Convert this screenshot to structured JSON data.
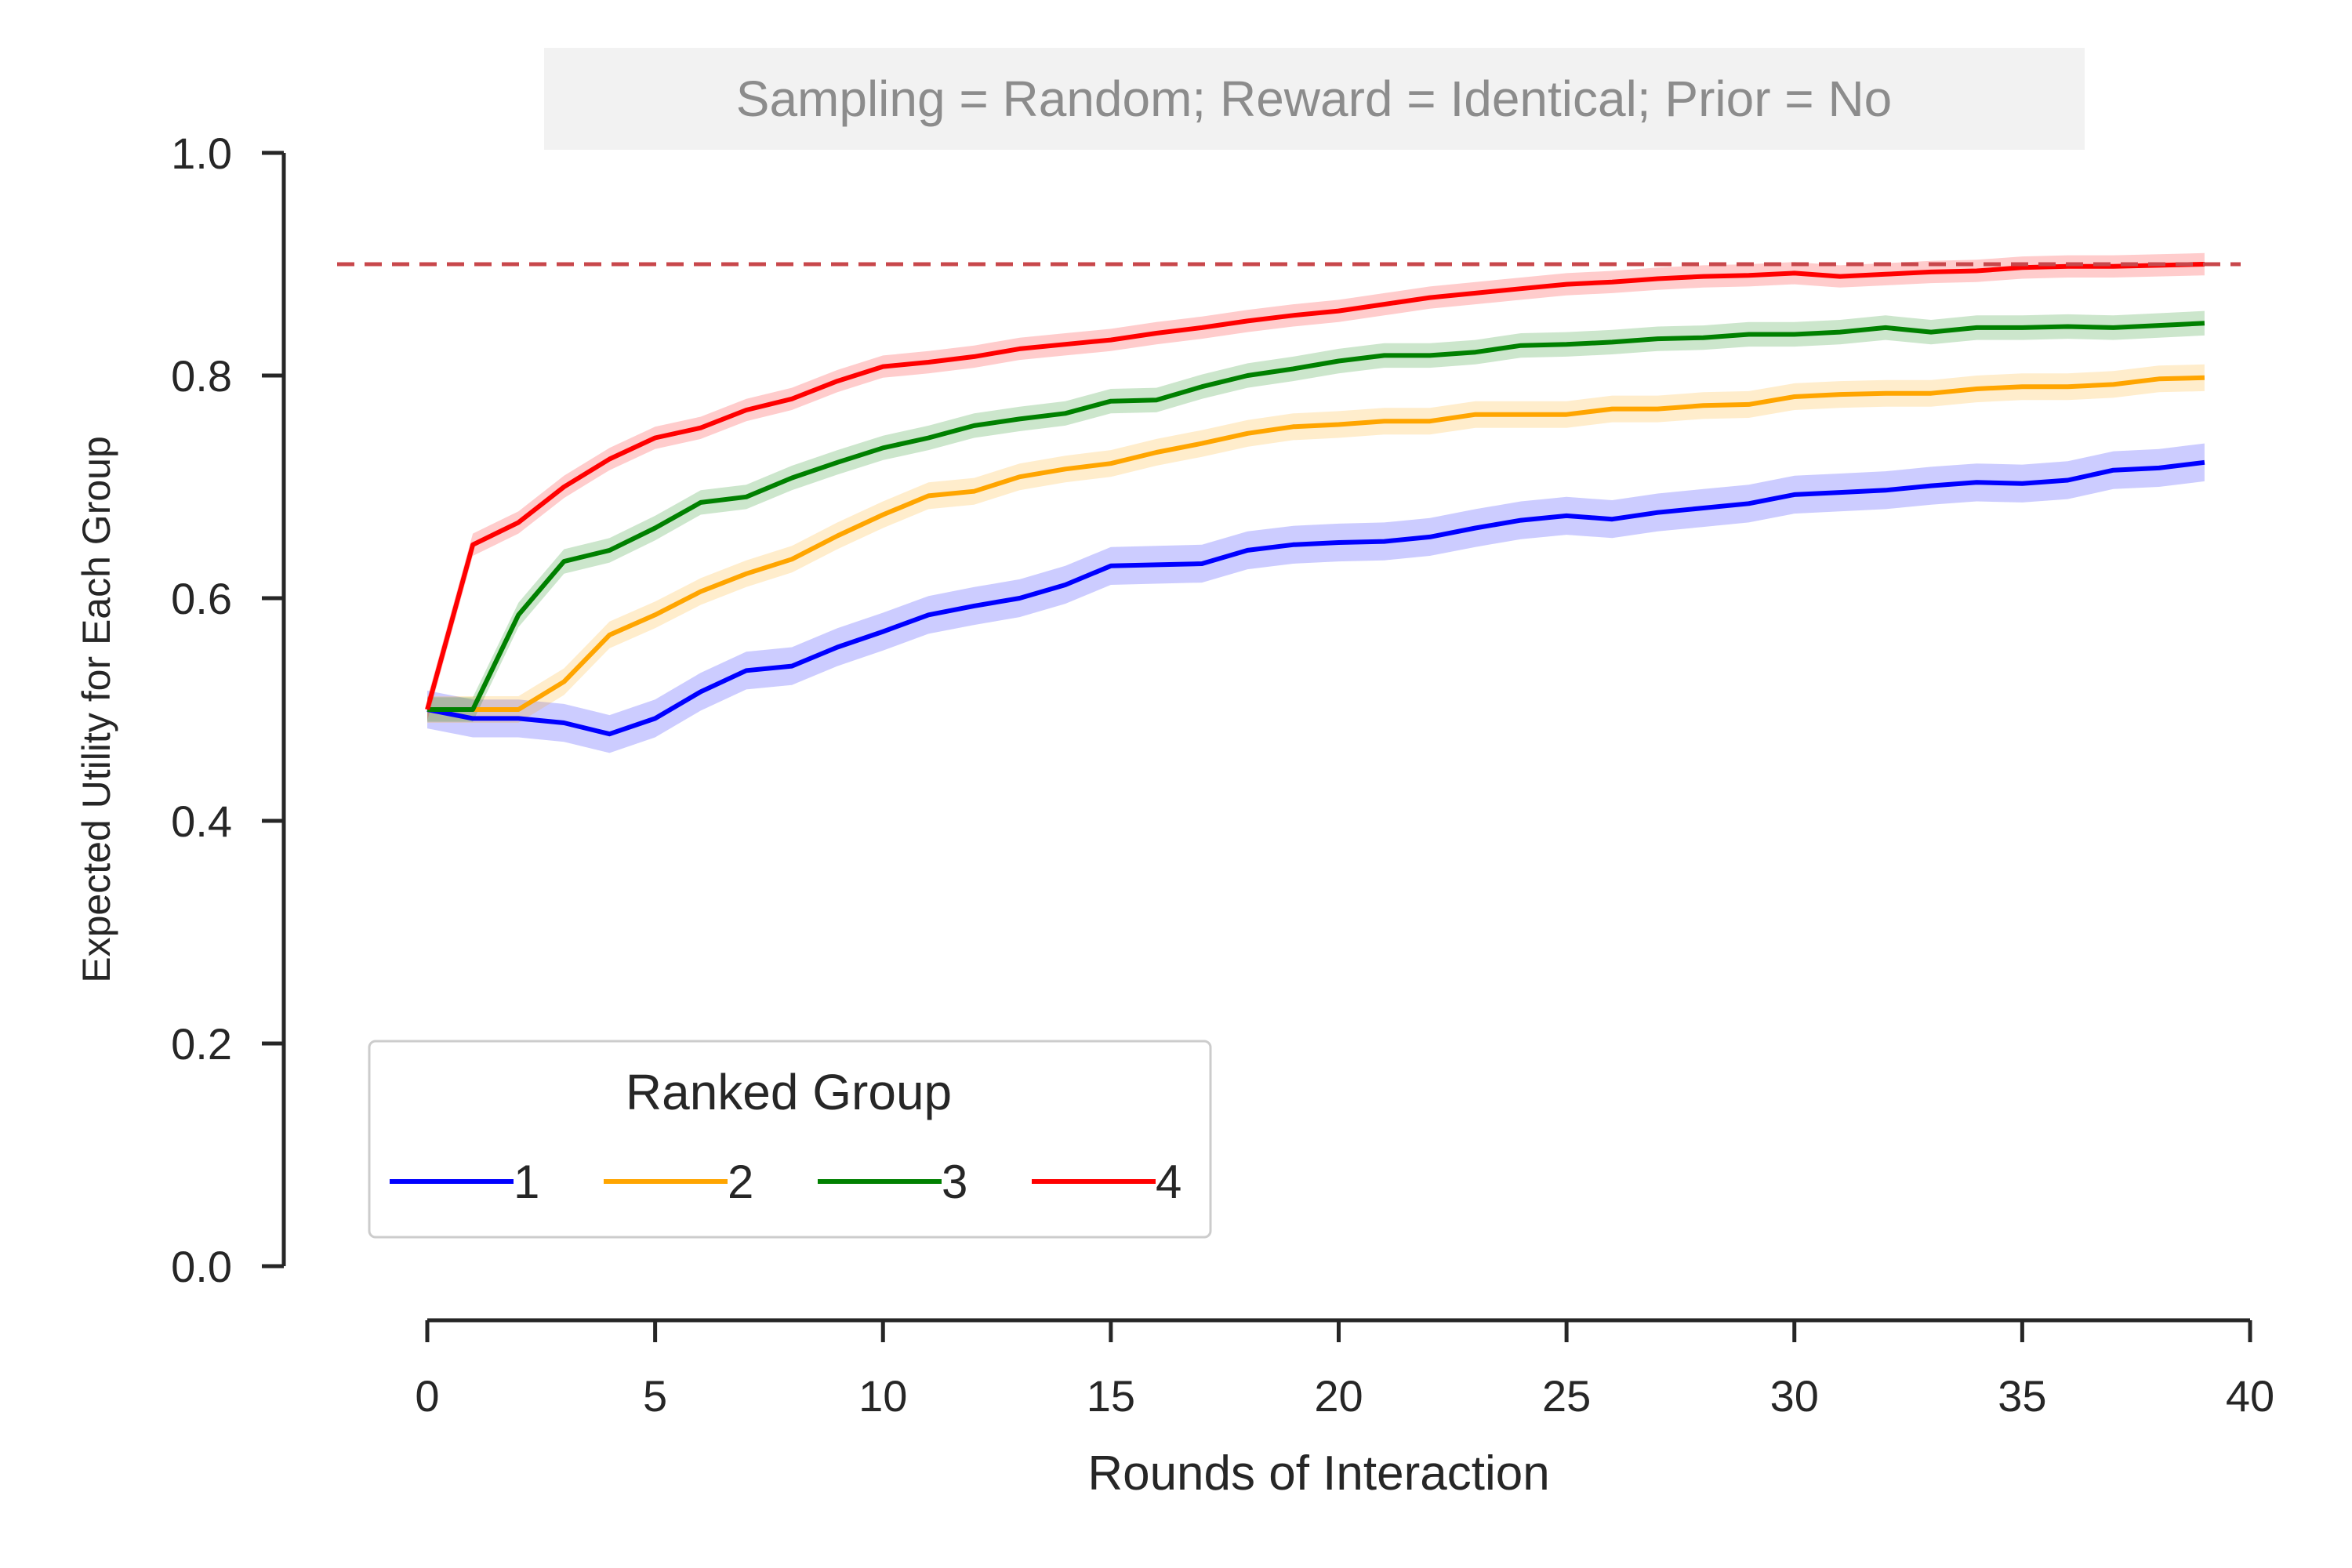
{
  "chart_data": {
    "type": "line",
    "title": "Sampling = Random; Reward = Identical; Prior = No",
    "xlabel": "Rounds of Interaction",
    "ylabel": "Expected Utility for Each Group",
    "xlim": [
      0,
      40
    ],
    "ylim": [
      0,
      1.0
    ],
    "x_ticks": [
      "0",
      "5",
      "10",
      "15",
      "20",
      "25",
      "30",
      "35",
      "40"
    ],
    "y_ticks": [
      "0.0",
      "0.2",
      "0.4",
      "0.6",
      "0.8",
      "1.0"
    ],
    "grid": false,
    "reference_line": {
      "y": 0.9,
      "style": "dashed",
      "color": "#c8474b"
    },
    "legend": {
      "title": "Ranked Group",
      "placement": "lower-left"
    },
    "x": [
      0,
      1,
      2,
      3,
      4,
      5,
      6,
      7,
      8,
      9,
      10,
      11,
      12,
      13,
      14,
      15,
      16,
      17,
      18,
      19,
      20,
      21,
      22,
      23,
      24,
      25,
      26,
      27,
      28,
      29,
      30,
      31,
      32,
      33,
      34,
      35,
      36,
      37,
      38,
      39
    ],
    "series": [
      {
        "name": "1",
        "color": "#0000ff",
        "values": [
          0.5,
          0.492,
          0.492,
          0.488,
          0.478,
          0.492,
          0.516,
          0.535,
          0.539,
          0.556,
          0.57,
          0.585,
          0.593,
          0.6,
          0.612,
          0.629,
          0.63,
          0.631,
          0.643,
          0.648,
          0.65,
          0.651,
          0.655,
          0.663,
          0.67,
          0.674,
          0.671,
          0.677,
          0.681,
          0.685,
          0.693,
          0.695,
          0.697,
          0.701,
          0.704,
          0.703,
          0.706,
          0.715,
          0.717,
          0.722
        ],
        "band": 0.017
      },
      {
        "name": "2",
        "color": "#ffa500",
        "values": [
          0.5,
          0.5,
          0.5,
          0.525,
          0.567,
          0.585,
          0.606,
          0.622,
          0.635,
          0.656,
          0.675,
          0.692,
          0.696,
          0.709,
          0.716,
          0.721,
          0.731,
          0.739,
          0.748,
          0.754,
          0.756,
          0.759,
          0.759,
          0.765,
          0.765,
          0.765,
          0.77,
          0.77,
          0.773,
          0.774,
          0.781,
          0.783,
          0.784,
          0.784,
          0.788,
          0.79,
          0.79,
          0.792,
          0.797,
          0.798
        ],
        "band": 0.012
      },
      {
        "name": "3",
        "color": "#008000",
        "values": [
          0.5,
          0.5,
          0.585,
          0.633,
          0.643,
          0.663,
          0.686,
          0.691,
          0.708,
          0.722,
          0.735,
          0.744,
          0.755,
          0.761,
          0.766,
          0.777,
          0.778,
          0.79,
          0.8,
          0.806,
          0.813,
          0.818,
          0.818,
          0.821,
          0.827,
          0.828,
          0.83,
          0.833,
          0.834,
          0.837,
          0.837,
          0.839,
          0.843,
          0.839,
          0.843,
          0.843,
          0.844,
          0.843,
          0.845,
          0.847
        ],
        "band": 0.011
      },
      {
        "name": "4",
        "color": "#ff0000",
        "values": [
          0.5,
          0.648,
          0.668,
          0.7,
          0.725,
          0.744,
          0.753,
          0.769,
          0.779,
          0.795,
          0.808,
          0.812,
          0.817,
          0.824,
          0.828,
          0.832,
          0.838,
          0.843,
          0.849,
          0.854,
          0.858,
          0.864,
          0.87,
          0.874,
          0.878,
          0.882,
          0.884,
          0.887,
          0.889,
          0.89,
          0.892,
          0.889,
          0.891,
          0.893,
          0.894,
          0.897,
          0.898,
          0.898,
          0.899,
          0.9
        ],
        "band": 0.01
      }
    ]
  }
}
